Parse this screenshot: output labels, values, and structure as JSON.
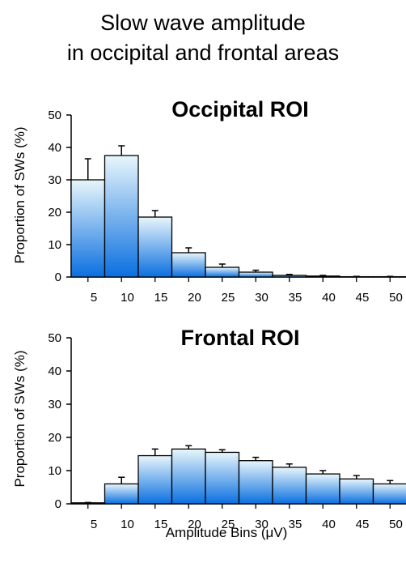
{
  "figure": {
    "title_line1": "Slow wave amplitude",
    "title_line2": "in occipital and frontal areas",
    "xlabel": "Amplitude Bins (μV)"
  },
  "colors": {
    "bar_top": "#e8f6fb",
    "bar_bottom": "#0a6fe0",
    "outline": "#000000"
  },
  "chart_data": [
    {
      "type": "bar",
      "title": "Occipital ROI",
      "ylabel": "Proportion of SWs (%)",
      "xlabel": "Amplitude Bins (μV)",
      "categories": [
        "5",
        "10",
        "15",
        "20",
        "25",
        "30",
        "35",
        "40",
        "45",
        "50"
      ],
      "values": [
        30,
        37.5,
        18.5,
        7.5,
        3,
        1.5,
        0.5,
        0.3,
        0.1,
        0.1
      ],
      "errors": [
        6.5,
        3,
        2,
        1.5,
        1,
        0.6,
        0.3,
        0.2,
        0.1,
        0.1
      ],
      "ylim": [
        0,
        50
      ],
      "yticks": [
        0,
        10,
        20,
        30,
        40,
        50
      ],
      "grid": false
    },
    {
      "type": "bar",
      "title": "Frontal ROI",
      "ylabel": "Proportion of SWs (%)",
      "xlabel": "Amplitude Bins (μV)",
      "categories": [
        "5",
        "10",
        "15",
        "20",
        "25",
        "30",
        "35",
        "40",
        "45",
        "50"
      ],
      "values": [
        0.3,
        6,
        14.5,
        16.5,
        15.5,
        13,
        11,
        9,
        7.5,
        6
      ],
      "errors": [
        0.1,
        2,
        2,
        1,
        0.8,
        1,
        1,
        1,
        1,
        1
      ],
      "ylim": [
        0,
        50
      ],
      "yticks": [
        0,
        10,
        20,
        30,
        40,
        50
      ],
      "grid": false
    }
  ]
}
